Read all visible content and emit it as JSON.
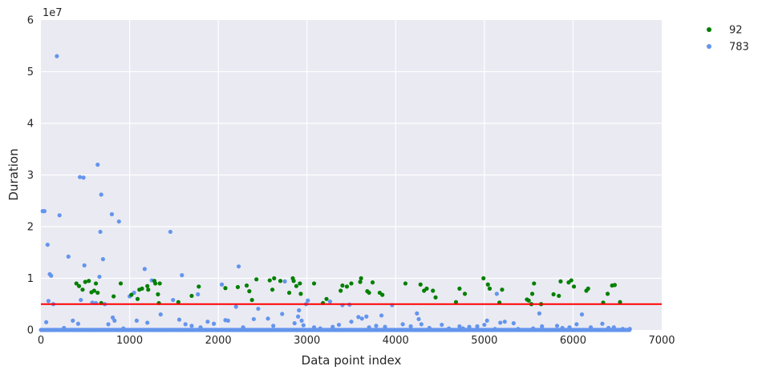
{
  "chart_data": {
    "type": "scatter",
    "xlabel": "Data point index",
    "ylabel": "Duration",
    "y_offset_label": "1e7",
    "xlim": [
      0,
      7000
    ],
    "ylim": [
      0,
      60000000
    ],
    "x_ticks": [
      0,
      1000,
      2000,
      3000,
      4000,
      5000,
      6000,
      7000
    ],
    "y_ticks": [
      0,
      10000000,
      20000000,
      30000000,
      40000000,
      50000000,
      60000000
    ],
    "x_tick_labels": [
      "0",
      "1000",
      "2000",
      "3000",
      "4000",
      "5000",
      "6000",
      "7000"
    ],
    "y_tick_labels": [
      "0",
      "1",
      "2",
      "3",
      "4",
      "5",
      "6"
    ],
    "grid": true,
    "legend_position": "outside-top-right",
    "threshold_line": {
      "y": 5000000,
      "color": "#ff0000"
    },
    "series": [
      {
        "name": "92",
        "color": "#008000",
        "points": [
          [
            400,
            9000000
          ],
          [
            430,
            8500000
          ],
          [
            470,
            7800000
          ],
          [
            500,
            9300000
          ],
          [
            540,
            9500000
          ],
          [
            570,
            7300000
          ],
          [
            600,
            7600000
          ],
          [
            620,
            9000000
          ],
          [
            640,
            7200000
          ],
          [
            680,
            5200000
          ],
          [
            820,
            6500000
          ],
          [
            900,
            9000000
          ],
          [
            1020,
            6800000
          ],
          [
            1090,
            6000000
          ],
          [
            1110,
            7800000
          ],
          [
            1140,
            8000000
          ],
          [
            1200,
            8500000
          ],
          [
            1210,
            7800000
          ],
          [
            1280,
            9500000
          ],
          [
            1290,
            9000000
          ],
          [
            1320,
            6900000
          ],
          [
            1340,
            9000000
          ],
          [
            1330,
            5200000
          ],
          [
            1550,
            5400000
          ],
          [
            1700,
            6600000
          ],
          [
            1780,
            8400000
          ],
          [
            2080,
            8100000
          ],
          [
            2220,
            8300000
          ],
          [
            2320,
            8600000
          ],
          [
            2350,
            7500000
          ],
          [
            2380,
            5800000
          ],
          [
            2430,
            9800000
          ],
          [
            2580,
            9600000
          ],
          [
            2610,
            7800000
          ],
          [
            2630,
            10000000
          ],
          [
            2700,
            9500000
          ],
          [
            2800,
            7200000
          ],
          [
            2840,
            10000000
          ],
          [
            2850,
            9500000
          ],
          [
            2880,
            8500000
          ],
          [
            2920,
            9000000
          ],
          [
            2930,
            7000000
          ],
          [
            3080,
            9000000
          ],
          [
            3180,
            5200000
          ],
          [
            3220,
            6000000
          ],
          [
            3380,
            7600000
          ],
          [
            3400,
            8600000
          ],
          [
            3450,
            8400000
          ],
          [
            3500,
            9000000
          ],
          [
            3600,
            9300000
          ],
          [
            3610,
            10000000
          ],
          [
            3680,
            7500000
          ],
          [
            3700,
            7200000
          ],
          [
            3740,
            9200000
          ],
          [
            3820,
            7200000
          ],
          [
            3850,
            6800000
          ],
          [
            4110,
            9000000
          ],
          [
            4280,
            8800000
          ],
          [
            4320,
            7600000
          ],
          [
            4350,
            8000000
          ],
          [
            4420,
            7600000
          ],
          [
            4450,
            6300000
          ],
          [
            4680,
            5400000
          ],
          [
            4720,
            8000000
          ],
          [
            4780,
            7000000
          ],
          [
            4990,
            10000000
          ],
          [
            5040,
            8800000
          ],
          [
            5060,
            8000000
          ],
          [
            5170,
            5300000
          ],
          [
            5200,
            7800000
          ],
          [
            5480,
            5900000
          ],
          [
            5500,
            5700000
          ],
          [
            5530,
            5000000
          ],
          [
            5540,
            7000000
          ],
          [
            5560,
            9000000
          ],
          [
            5640,
            5000000
          ],
          [
            5780,
            6900000
          ],
          [
            5840,
            6600000
          ],
          [
            5860,
            9400000
          ],
          [
            5950,
            9200000
          ],
          [
            5980,
            9600000
          ],
          [
            6010,
            8400000
          ],
          [
            6150,
            7600000
          ],
          [
            6170,
            8000000
          ],
          [
            6340,
            5300000
          ],
          [
            6390,
            7000000
          ],
          [
            6440,
            8600000
          ],
          [
            6470,
            8700000
          ],
          [
            6530,
            5400000
          ]
        ]
      },
      {
        "name": "783",
        "color": "#6495ed",
        "points": [
          [
            20,
            23000000
          ],
          [
            40,
            23000000
          ],
          [
            60,
            1500000
          ],
          [
            75,
            16500000
          ],
          [
            85,
            5600000
          ],
          [
            100,
            10800000
          ],
          [
            115,
            10500000
          ],
          [
            140,
            5000000
          ],
          [
            180,
            53000000
          ],
          [
            210,
            22200000
          ],
          [
            260,
            400000
          ],
          [
            310,
            14200000
          ],
          [
            360,
            1800000
          ],
          [
            420,
            1200000
          ],
          [
            440,
            29600000
          ],
          [
            450,
            5800000
          ],
          [
            480,
            29500000
          ],
          [
            490,
            12500000
          ],
          [
            580,
            5300000
          ],
          [
            620,
            5200000
          ],
          [
            640,
            32000000
          ],
          [
            660,
            10300000
          ],
          [
            670,
            19000000
          ],
          [
            680,
            26200000
          ],
          [
            700,
            13700000
          ],
          [
            720,
            5000000
          ],
          [
            760,
            1100000
          ],
          [
            800,
            22400000
          ],
          [
            810,
            2400000
          ],
          [
            830,
            1800000
          ],
          [
            880,
            21000000
          ],
          [
            930,
            300000
          ],
          [
            1000,
            6500000
          ],
          [
            1050,
            7200000
          ],
          [
            1080,
            1800000
          ],
          [
            1170,
            11800000
          ],
          [
            1200,
            1400000
          ],
          [
            1250,
            9600000
          ],
          [
            1350,
            3000000
          ],
          [
            1460,
            19000000
          ],
          [
            1490,
            5800000
          ],
          [
            1560,
            2000000
          ],
          [
            1590,
            10600000
          ],
          [
            1630,
            1100000
          ],
          [
            1700,
            800000
          ],
          [
            1770,
            6900000
          ],
          [
            1800,
            500000
          ],
          [
            1880,
            1600000
          ],
          [
            1950,
            1200000
          ],
          [
            2040,
            8800000
          ],
          [
            2080,
            1900000
          ],
          [
            2110,
            1800000
          ],
          [
            2200,
            4500000
          ],
          [
            2230,
            12300000
          ],
          [
            2280,
            500000
          ],
          [
            2400,
            2100000
          ],
          [
            2450,
            4100000
          ],
          [
            2560,
            2200000
          ],
          [
            2620,
            800000
          ],
          [
            2720,
            3100000
          ],
          [
            2750,
            9400000
          ],
          [
            2860,
            1300000
          ],
          [
            2900,
            2600000
          ],
          [
            2910,
            3800000
          ],
          [
            2940,
            1800000
          ],
          [
            2960,
            900000
          ],
          [
            2990,
            5000000
          ],
          [
            3010,
            5700000
          ],
          [
            3080,
            500000
          ],
          [
            3150,
            300000
          ],
          [
            3260,
            5500000
          ],
          [
            3290,
            600000
          ],
          [
            3360,
            1000000
          ],
          [
            3400,
            4800000
          ],
          [
            3480,
            4900000
          ],
          [
            3500,
            1600000
          ],
          [
            3580,
            2500000
          ],
          [
            3620,
            2200000
          ],
          [
            3670,
            2600000
          ],
          [
            3700,
            500000
          ],
          [
            3780,
            800000
          ],
          [
            3840,
            2800000
          ],
          [
            3880,
            600000
          ],
          [
            3960,
            4800000
          ],
          [
            4080,
            1100000
          ],
          [
            4170,
            700000
          ],
          [
            4240,
            3200000
          ],
          [
            4260,
            2100000
          ],
          [
            4290,
            1100000
          ],
          [
            4380,
            400000
          ],
          [
            4520,
            1000000
          ],
          [
            4600,
            300000
          ],
          [
            4720,
            700000
          ],
          [
            4760,
            300000
          ],
          [
            4830,
            600000
          ],
          [
            4920,
            700000
          ],
          [
            5000,
            1000000
          ],
          [
            5030,
            1800000
          ],
          [
            5120,
            200000
          ],
          [
            5140,
            7000000
          ],
          [
            5180,
            1400000
          ],
          [
            5230,
            1600000
          ],
          [
            5330,
            1300000
          ],
          [
            5380,
            200000
          ],
          [
            5550,
            300000
          ],
          [
            5620,
            3200000
          ],
          [
            5650,
            700000
          ],
          [
            5820,
            800000
          ],
          [
            5880,
            400000
          ],
          [
            5960,
            500000
          ],
          [
            6040,
            1100000
          ],
          [
            6100,
            3000000
          ],
          [
            6200,
            500000
          ],
          [
            6330,
            1200000
          ],
          [
            6400,
            400000
          ],
          [
            6460,
            500000
          ],
          [
            6560,
            200000
          ],
          [
            6640,
            200000
          ]
        ]
      }
    ]
  }
}
